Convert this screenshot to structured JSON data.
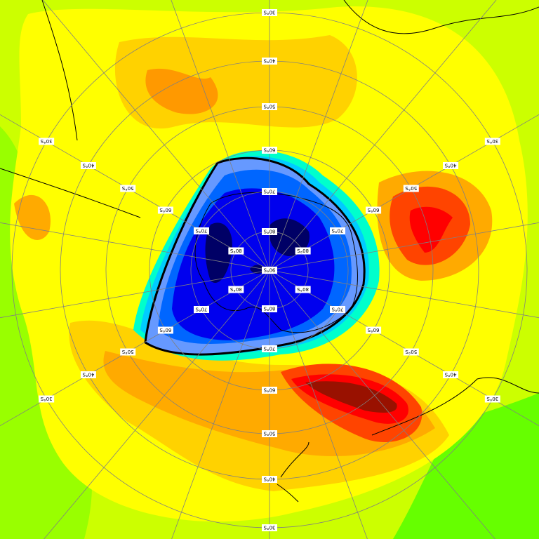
{
  "map": {
    "projection": "south polar stereographic",
    "latitude_labels": [
      "90°S",
      "80°S",
      "70°S",
      "60°S",
      "50°S",
      "40°S",
      "30°S"
    ],
    "colors": {
      "green_dark": "#66ff00",
      "green": "#99ff00",
      "yellow_green": "#ccff00",
      "yellow": "#ffff00",
      "gold": "#ffd200",
      "orange_light": "#ffaa00",
      "orange": "#ff7700",
      "red_orange": "#ff4400",
      "red": "#ff0000",
      "dark_red": "#991100",
      "cyan": "#00ffff",
      "teal": "#00ccff",
      "blue_light": "#6699ff",
      "blue_mid": "#0066ff",
      "blue": "#0000ee",
      "navy": "#000066",
      "contour": "#000000",
      "grid": "#808080"
    }
  }
}
